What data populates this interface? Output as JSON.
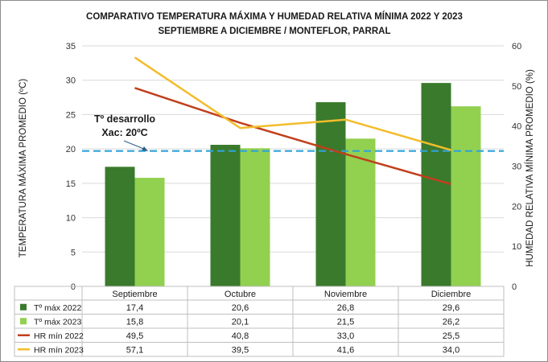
{
  "chart_data": {
    "type": "bar+line",
    "title_line1": "COMPARATIVO TEMPERATURA MÁXIMA Y HUMEDAD RELATIVA MÍNIMA 2022 Y 2023",
    "title_line2": "SEPTIEMBRE A DICIEMBRE / MONTEFLOR, PARRAL",
    "categories": [
      "Septiembre",
      "Octubre",
      "Noviembre",
      "Diciembre"
    ],
    "ylabel_left": "TEMPERATURA MÁXIMA PROMEDIO (ºC)",
    "ylabel_right": "HUMEDAD RELATIVA MÍNIMA PROMEDIO (%)",
    "ylim_left": [
      0,
      35
    ],
    "ylim_right": [
      0,
      60
    ],
    "yticks_left": [
      "0",
      "5",
      "10",
      "15",
      "20",
      "25",
      "30",
      "35"
    ],
    "yticks_right": [
      "0",
      "10",
      "20",
      "30",
      "40",
      "50",
      "60"
    ],
    "grid": true,
    "legend": "data-table",
    "bar_series": [
      {
        "name": "Tº máx 2022",
        "values": [
          17.4,
          20.6,
          26.8,
          29.6
        ],
        "labels": [
          "17,4",
          "20,6",
          "26,8",
          "29,6"
        ],
        "color": "#3a7a2c",
        "axis": "left"
      },
      {
        "name": "Tº máx 2023",
        "values": [
          15.8,
          20.1,
          21.5,
          26.2
        ],
        "labels": [
          "15,8",
          "20,1",
          "21,5",
          "26,2"
        ],
        "color": "#92d050",
        "axis": "left"
      }
    ],
    "line_series": [
      {
        "name": "HR mín 2022",
        "values": [
          49.5,
          40.8,
          33.0,
          25.5
        ],
        "labels": [
          "49,5",
          "40,8",
          "33,0",
          "25,5"
        ],
        "color": "#c0401c",
        "axis": "right"
      },
      {
        "name": "HR mín 2023",
        "values": [
          57.1,
          39.5,
          41.6,
          34.0
        ],
        "labels": [
          "57,1",
          "39,5",
          "41,6",
          "34,0"
        ],
        "color": "#f2bd2c",
        "axis": "right"
      }
    ],
    "reference_line": {
      "value": 19.7,
      "axis": "left",
      "color": "#2fa3d9"
    },
    "annotation": {
      "line1": "Tº desarrollo",
      "line2": "Xac: 20ºC"
    }
  }
}
